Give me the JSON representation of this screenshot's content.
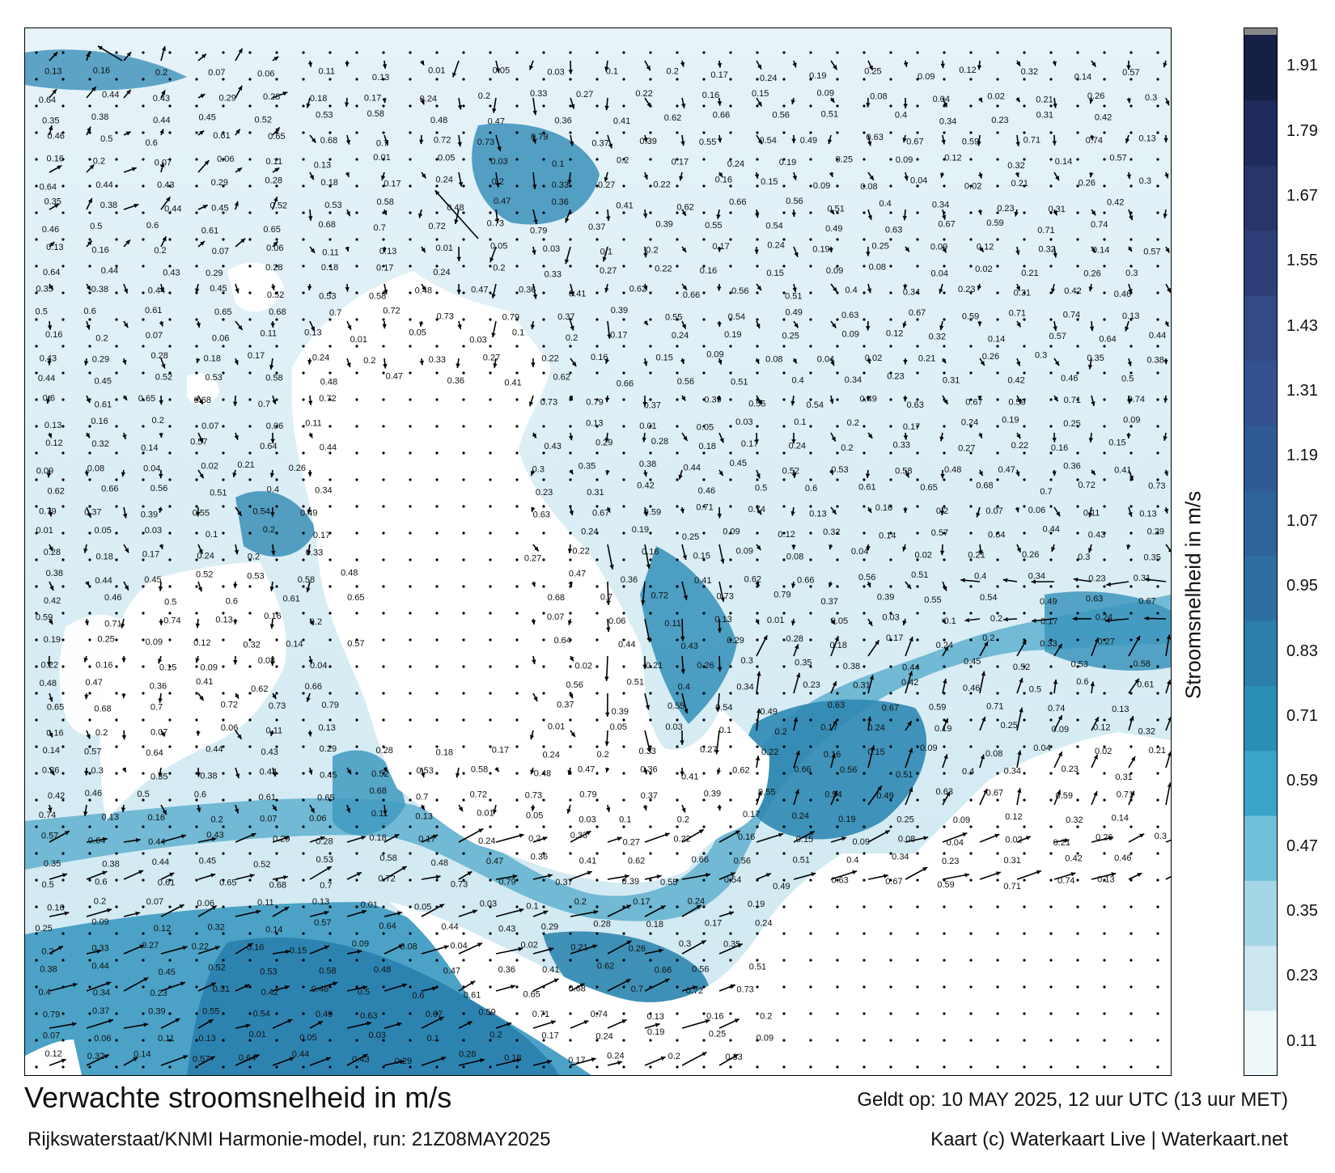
{
  "map": {
    "title": "Verwachte stroomsnelheid in m/s",
    "subtitle": "Rijkswaterstaat/KNMI Harmonie-model, run: 21Z08MAY2025",
    "valid_time": "Geldt op: 10 MAY 2025, 12 uur UTC (13 uur MET)",
    "credit": "Kaart (c) Waterkaart Live | Waterkaart.net",
    "colorbar_label": "Stroomsnelheid in m/s",
    "colorbar_ticks": [
      "0.11",
      "0.23",
      "0.35",
      "0.47",
      "0.59",
      "0.71",
      "0.83",
      "0.95",
      "1.07",
      "1.19",
      "1.31",
      "1.43",
      "1.55",
      "1.67",
      "1.79",
      "1.91"
    ],
    "colors": {
      "low": "#eef7fa",
      "mid": "#2a8fb5",
      "high": "#1a3f70",
      "max": "#111a33",
      "land": "#ffffff",
      "arrow": "#000000"
    },
    "speed_labels": [
      "0.13",
      "0.16",
      "0.2",
      "0.07",
      "0.06",
      "0.11",
      "0.13",
      "0.01",
      "0.05",
      "0.03",
      "0.1",
      "0.2",
      "0.17",
      "0.24",
      "0.19",
      "0.25",
      "0.09",
      "0.12",
      "0.32",
      "0.14",
      "0.57",
      "0.64",
      "0.44",
      "0.43",
      "0.29",
      "0.28",
      "0.18",
      "0.17",
      "0.24",
      "0.2",
      "0.33",
      "0.27",
      "0.22",
      "0.16",
      "0.15",
      "0.09",
      "0.08",
      "0.04",
      "0.02",
      "0.21",
      "0.26",
      "0.3",
      "0.35",
      "0.38",
      "0.44",
      "0.45",
      "0.52",
      "0.53",
      "0.58",
      "0.48",
      "0.47",
      "0.36",
      "0.41",
      "0.62",
      "0.66",
      "0.56",
      "0.51",
      "0.4",
      "0.34",
      "0.23",
      "0.31",
      "0.42",
      "0.46",
      "0.5",
      "0.6",
      "0.61",
      "0.65",
      "0.68",
      "0.7",
      "0.72",
      "0.73",
      "0.79",
      "0.37",
      "0.39",
      "0.55",
      "0.54",
      "0.49",
      "0.63",
      "0.67",
      "0.59",
      "0.71",
      "0.74"
    ]
  }
}
